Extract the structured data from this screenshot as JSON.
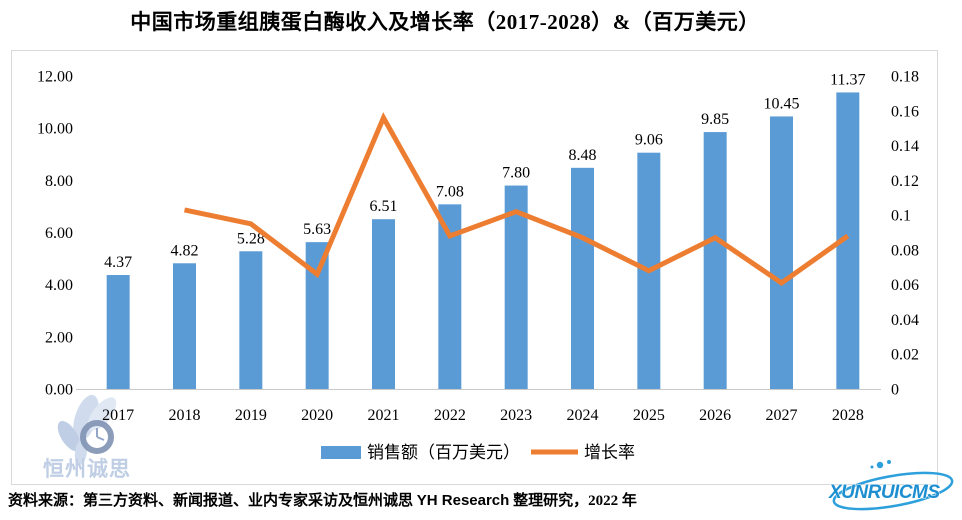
{
  "title": "中国市场重组胰蛋白酶收入及增长率（2017-2028）&（百万美元）",
  "chart_data": {
    "type": "bar+line-combo",
    "title": "中国市场重组胰蛋白酶收入及增长率（2017-2028）&（百万美元）",
    "categories": [
      "2017",
      "2018",
      "2019",
      "2020",
      "2021",
      "2022",
      "2023",
      "2024",
      "2025",
      "2026",
      "2027",
      "2028"
    ],
    "series": [
      {
        "name": "销售额（百万美元）",
        "type": "bar",
        "axis": "left",
        "color": "#5B9BD5",
        "values": [
          4.37,
          4.82,
          5.28,
          5.63,
          6.51,
          7.08,
          7.8,
          8.48,
          9.06,
          9.85,
          10.45,
          11.37
        ],
        "data_labels": [
          "4.37",
          "4.82",
          "5.28",
          "5.63",
          "6.51",
          "7.08",
          "7.80",
          "8.48",
          "9.06",
          "9.85",
          "10.45",
          "11.37"
        ]
      },
      {
        "name": "增长率",
        "type": "line",
        "axis": "right",
        "color": "#ED7D31",
        "values": [
          null,
          0.103,
          0.095,
          0.066,
          0.156,
          0.088,
          0.102,
          0.087,
          0.068,
          0.087,
          0.061,
          0.088
        ]
      }
    ],
    "left_axis": {
      "min": 0,
      "max": 12,
      "step": 2,
      "tick_labels": [
        "0.00",
        "2.00",
        "4.00",
        "6.00",
        "8.00",
        "10.00",
        "12.00"
      ]
    },
    "right_axis": {
      "min": 0,
      "max": 0.18,
      "step": 0.02,
      "tick_labels": [
        "0",
        "0.02",
        "0.04",
        "0.06",
        "0.08",
        "0.1",
        "0.12",
        "0.14",
        "0.16",
        "0.18"
      ]
    },
    "grid": false,
    "legend_position": "bottom"
  },
  "legend": {
    "items": [
      {
        "label": "销售额（百万美元）",
        "swatch": "bar",
        "color": "#5B9BD5"
      },
      {
        "label": "增长率",
        "swatch": "line",
        "color": "#ED7D31"
      }
    ]
  },
  "footer": {
    "seg1": "资料来源：第三方资料、新闻报道、业内专家采访及恒州诚思 ",
    "seg2": "YH Research",
    "seg3": " 整理研究，2022 年"
  },
  "watermarks": {
    "logo_text": "恒州诚思",
    "brand_text": "XUNRUICMS"
  },
  "colors": {
    "bar": "#5B9BD5",
    "line": "#ED7D31",
    "frame_border": "#D9D9D9",
    "axis_line": "#C9C9C9",
    "logo_blue": "#B9C9E2",
    "brand_blue": "#1D8FD0"
  }
}
